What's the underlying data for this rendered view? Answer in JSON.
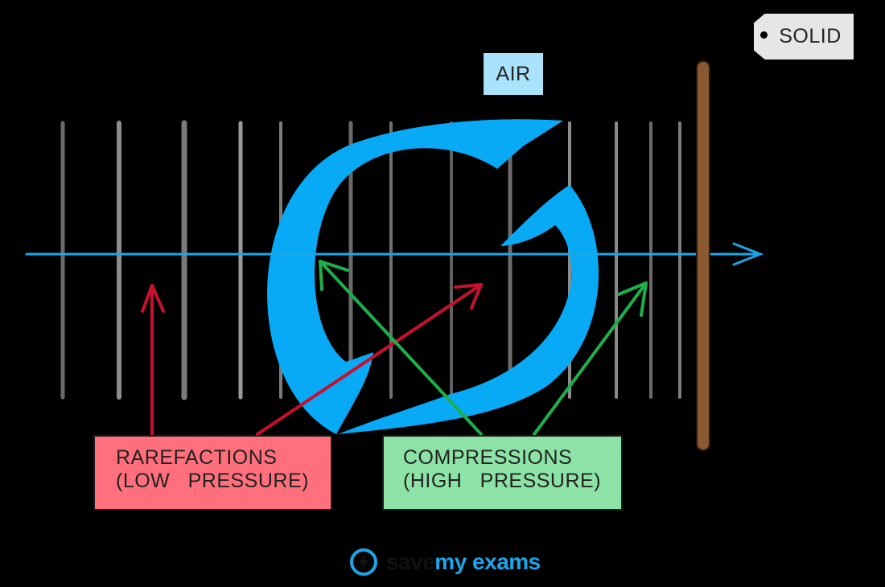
{
  "labels": {
    "air": "AIR",
    "solid": "SOLID",
    "rarefactions_title": "RAREFACTIONS",
    "rarefactions_sub": "(LOW   PRESSURE)",
    "compressions_title": "COMPRESSIONS",
    "compressions_sub": "(HIGH   PRESSURE)"
  },
  "logo": {
    "part1": "save",
    "part2": "my exams",
    "icon": "lightning-bolt-icon"
  },
  "colors": {
    "background": "#000000",
    "axis_arrow": "#1aa6e8",
    "circular_arrow": "#08aaf5",
    "air_tag": "#a8e2fb",
    "solid_tag": "#e6e6e6",
    "solid_rod": "#8a5a32",
    "rarefactions_box": "#ff6f7c",
    "rarefactions_arrow": "#c8102e",
    "compressions_box": "#8de3a6",
    "compressions_arrow": "#1db04a",
    "wavefront_lines": "#8a8a8a"
  }
}
